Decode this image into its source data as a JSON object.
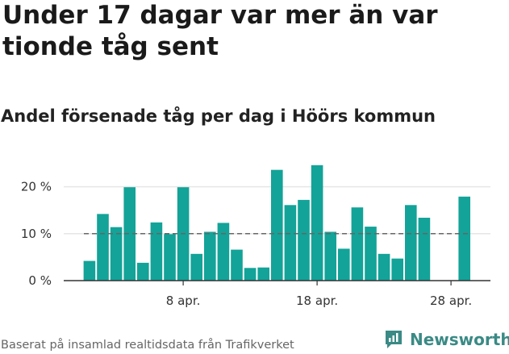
{
  "title": "Under 17 dagar var mer än var tionde tåg sent",
  "subtitle": "Andel försenade tåg per dag i Höörs kommun",
  "source": "Baserat på insamlad realtidsdata från Trafikverket",
  "brand": {
    "name": "Newsworthy",
    "icon": "bar-chart-logo-icon",
    "color": "#3a8a85"
  },
  "colors": {
    "bar": "#13a398",
    "grid": "#e6e6e6",
    "axis": "#333333",
    "reference": "#666666"
  },
  "chart_data": {
    "type": "bar",
    "title": "Under 17 dagar var mer än var tionde tåg sent",
    "subtitle": "Andel försenade tåg per dag i Höörs kommun",
    "xlabel": "",
    "ylabel": "",
    "x": [
      "1 apr.",
      "2 apr.",
      "3 apr.",
      "4 apr.",
      "5 apr.",
      "6 apr.",
      "7 apr.",
      "8 apr.",
      "9 apr.",
      "10 apr.",
      "11 apr.",
      "12 apr.",
      "13 apr.",
      "14 apr.",
      "15 apr.",
      "16 apr.",
      "17 apr.",
      "18 apr.",
      "19 apr.",
      "20 apr.",
      "21 apr.",
      "22 apr.",
      "23 apr.",
      "24 apr.",
      "25 apr.",
      "26 apr.",
      "27 apr.",
      "28 apr.",
      "29 apr."
    ],
    "values": [
      4.2,
      14.2,
      11.4,
      19.9,
      3.8,
      12.4,
      9.9,
      19.9,
      5.7,
      10.4,
      12.3,
      6.6,
      2.7,
      2.8,
      23.6,
      16.1,
      17.2,
      24.6,
      10.4,
      6.8,
      15.6,
      11.5,
      5.7,
      4.7,
      16.1,
      13.4,
      null,
      null,
      17.9
    ],
    "reference_line": 10,
    "ylim": [
      0,
      26
    ],
    "yticks": [
      0,
      10,
      20
    ],
    "ytick_labels": [
      "0 %",
      "10 %",
      "20 %"
    ],
    "xtick_labels": [
      {
        "index": 7,
        "label": "8 apr."
      },
      {
        "index": 17,
        "label": "18 apr."
      },
      {
        "index": 27,
        "label": "28 apr."
      }
    ],
    "grid": true,
    "legend": "none"
  }
}
